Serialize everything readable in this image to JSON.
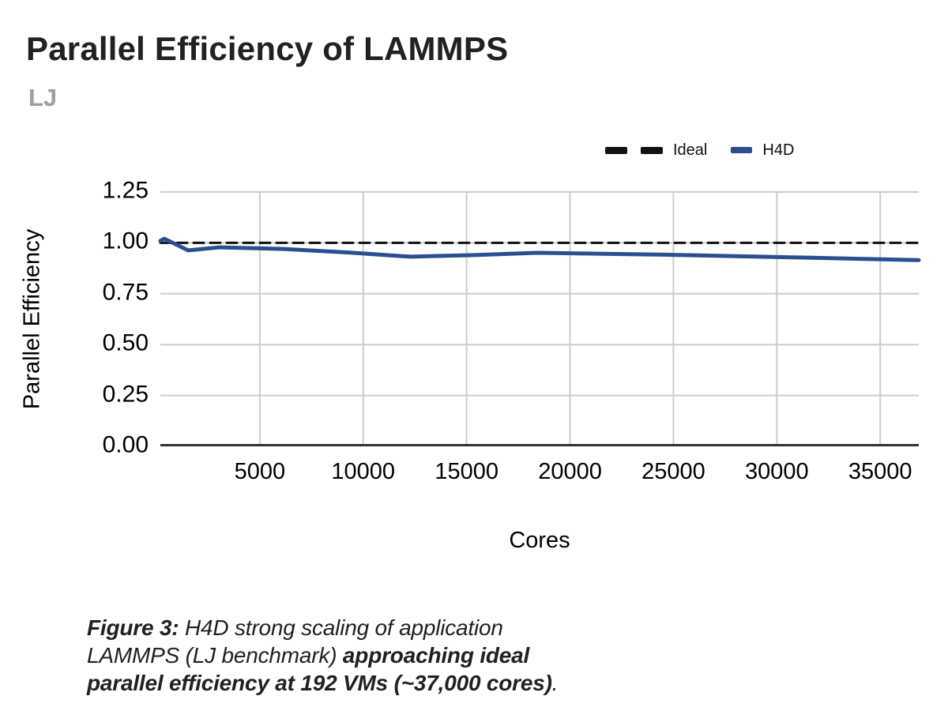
{
  "header": {
    "title": "Parallel Efficiency of LAMMPS",
    "subtitle": "LJ"
  },
  "legend": {
    "items": [
      {
        "label": "Ideal",
        "swatch": "dashed-black"
      },
      {
        "label": "H4D",
        "swatch": "solid-blue"
      }
    ]
  },
  "axes": {
    "ylabel": "Parallel Efficiency",
    "xlabel": "Cores"
  },
  "caption": {
    "lines": [
      [
        {
          "t": "Figure 3:",
          "b": true
        },
        {
          "t": " H4D strong scaling of application",
          "b": false
        }
      ],
      [
        {
          "t": "LAMMPS (LJ benchmark) ",
          "b": false
        },
        {
          "t": "approaching ideal",
          "b": true
        }
      ],
      [
        {
          "t": "parallel efficiency at 192 VMs (~37,000 cores)",
          "b": true
        },
        {
          "t": ".",
          "b": false
        }
      ]
    ]
  },
  "chart_data": {
    "type": "line",
    "title": "Parallel Efficiency of LAMMPS",
    "subtitle": "LJ",
    "xlabel": "Cores",
    "ylabel": "Parallel Efficiency",
    "xlim": [
      192,
      36864
    ],
    "ylim": [
      0,
      1.25
    ],
    "x_ticks": [
      5000,
      10000,
      15000,
      20000,
      25000,
      30000,
      35000
    ],
    "y_ticks": [
      0,
      0.25,
      0.5,
      0.75,
      1.0,
      1.25
    ],
    "y_tick_labels": [
      "0.00",
      "0.25",
      "0.50",
      "0.75",
      "1.00",
      "1.25"
    ],
    "grid": true,
    "legend_position": "top-right",
    "colors": {
      "grid": "#cccccc",
      "axis": "#333333",
      "ideal": "#111111",
      "h4d": "#2a4f8f"
    },
    "series": [
      {
        "name": "Ideal",
        "style": "dashed",
        "color": "#111111",
        "x": [
          192,
          36864
        ],
        "y": [
          1.0,
          1.0
        ]
      },
      {
        "name": "H4D",
        "style": "solid",
        "color": "#2a4f8f",
        "x": [
          192,
          384,
          1536,
          3072,
          6144,
          9216,
          12288,
          15360,
          18432,
          24576,
          30720,
          36864
        ],
        "y": [
          1.01,
          1.02,
          0.963,
          0.978,
          0.97,
          0.953,
          0.932,
          0.94,
          0.951,
          0.942,
          0.929,
          0.915
        ]
      }
    ]
  }
}
